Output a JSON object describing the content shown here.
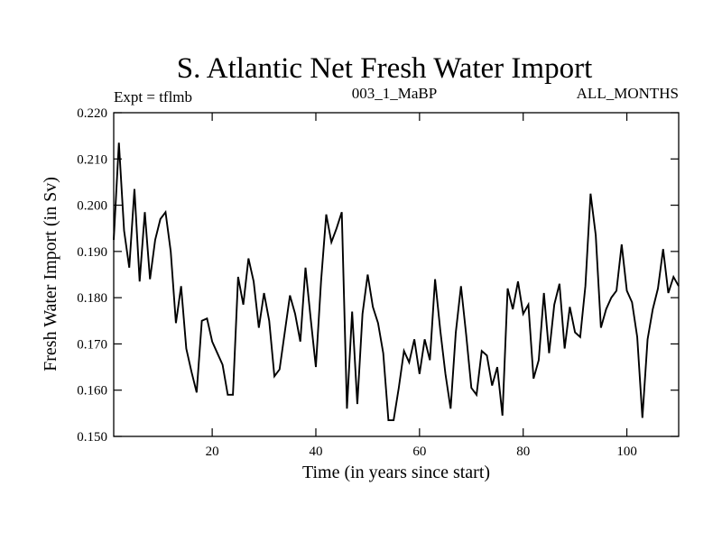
{
  "chart_data": {
    "type": "line",
    "title": "S. Atlantic Net Fresh Water Import",
    "subtitle_left": "Expt = tflmb",
    "subtitle_center": "003_1_MaBP",
    "subtitle_right": "ALL_MONTHS",
    "xlabel": "Time (in years since start)",
    "ylabel": "Fresh Water Import (in Sv)",
    "xlim": [
      1,
      110
    ],
    "ylim": [
      0.15,
      0.22
    ],
    "x_ticks": [
      20,
      40,
      60,
      80,
      100
    ],
    "y_ticks": [
      0.15,
      0.16,
      0.17,
      0.18,
      0.19,
      0.2,
      0.21,
      0.22
    ],
    "y_tick_labels": [
      "0.150",
      "0.160",
      "0.170",
      "0.180",
      "0.190",
      "0.200",
      "0.210",
      "0.220"
    ],
    "x_tick_labels": [
      "20",
      "40",
      "60",
      "80",
      "100"
    ],
    "grid": false,
    "series": [
      {
        "name": "Fresh Water Import",
        "color": "#000000",
        "x": [
          1,
          2,
          3,
          4,
          5,
          6,
          7,
          8,
          9,
          10,
          11,
          12,
          13,
          14,
          15,
          16,
          17,
          18,
          19,
          20,
          21,
          22,
          23,
          24,
          25,
          26,
          27,
          28,
          29,
          30,
          31,
          32,
          33,
          34,
          35,
          36,
          37,
          38,
          39,
          40,
          41,
          42,
          43,
          44,
          45,
          46,
          47,
          48,
          49,
          50,
          51,
          52,
          53,
          54,
          55,
          56,
          57,
          58,
          59,
          60,
          61,
          62,
          63,
          64,
          65,
          66,
          67,
          68,
          69,
          70,
          71,
          72,
          73,
          74,
          75,
          76,
          77,
          78,
          79,
          80,
          81,
          82,
          83,
          84,
          85,
          86,
          87,
          88,
          89,
          90,
          91,
          92,
          93,
          94,
          95,
          96,
          97,
          98,
          99,
          100,
          101,
          102,
          103,
          104,
          105,
          106,
          107,
          108,
          109,
          110
        ],
        "values": [
          0.1925,
          0.2135,
          0.1945,
          0.1865,
          0.2035,
          0.1835,
          0.1985,
          0.184,
          0.1925,
          0.197,
          0.1985,
          0.19,
          0.1745,
          0.1825,
          0.169,
          0.164,
          0.1595,
          0.175,
          0.1755,
          0.1705,
          0.168,
          0.1655,
          0.159,
          0.159,
          0.1845,
          0.1785,
          0.1885,
          0.1835,
          0.1735,
          0.181,
          0.175,
          0.163,
          0.1645,
          0.1725,
          0.1805,
          0.1765,
          0.1705,
          0.1865,
          0.1755,
          0.165,
          0.1835,
          0.198,
          0.192,
          0.195,
          0.1985,
          0.156,
          0.177,
          0.157,
          0.1765,
          0.185,
          0.178,
          0.1745,
          0.168,
          0.1535,
          0.1535,
          0.1605,
          0.1685,
          0.166,
          0.171,
          0.1635,
          0.171,
          0.1665,
          0.184,
          0.173,
          0.1635,
          0.156,
          0.1725,
          0.1825,
          0.172,
          0.1605,
          0.159,
          0.1685,
          0.1675,
          0.161,
          0.165,
          0.1545,
          0.182,
          0.1775,
          0.1835,
          0.1765,
          0.1785,
          0.1625,
          0.1665,
          0.181,
          0.168,
          0.1785,
          0.183,
          0.169,
          0.178,
          0.1725,
          0.1715,
          0.1825,
          0.2025,
          0.1935,
          0.1735,
          0.1775,
          0.18,
          0.1815,
          0.1915,
          0.1815,
          0.179,
          0.1715,
          0.154,
          0.171,
          0.1775,
          0.182,
          0.1905,
          0.181,
          0.1845,
          0.1825
        ]
      }
    ]
  }
}
